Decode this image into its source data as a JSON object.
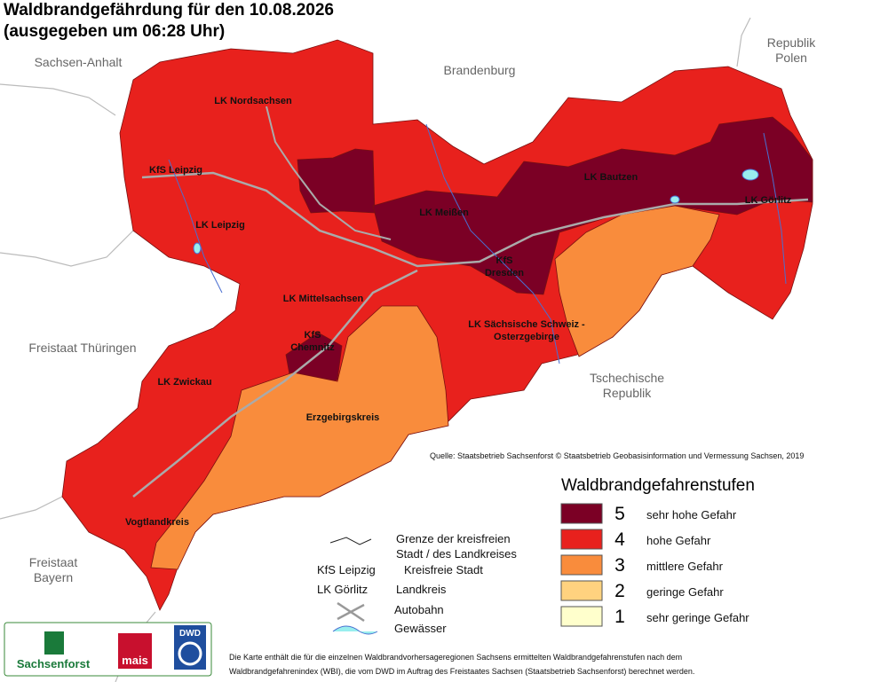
{
  "title": {
    "line1": "Waldbrandgefährdung  für den  10.08.2026",
    "line2": "(ausgegeben um 06:28 Uhr)"
  },
  "neighbors": [
    {
      "lines": [
        "Sachsen-Anhalt"
      ]
    },
    {
      "lines": [
        "Brandenburg"
      ]
    },
    {
      "lines": [
        "Republik",
        "Polen"
      ]
    },
    {
      "lines": [
        "Freistaat Thüringen"
      ]
    },
    {
      "lines": [
        "Tschechische",
        "Republik"
      ]
    },
    {
      "lines": [
        "Freistaat",
        "Bayern"
      ]
    }
  ],
  "regions": [
    {
      "lines": [
        "LK Nordsachsen"
      ]
    },
    {
      "lines": [
        "KfS Leipzig"
      ]
    },
    {
      "lines": [
        "LK Leipzig"
      ]
    },
    {
      "lines": [
        "LK Meißen"
      ]
    },
    {
      "lines": [
        "LK Bautzen"
      ]
    },
    {
      "lines": [
        "LK Görlitz"
      ]
    },
    {
      "lines": [
        "KfS",
        "Dresden"
      ]
    },
    {
      "lines": [
        "LK Mittelsachsen"
      ]
    },
    {
      "lines": [
        "LK Sächsische Schweiz -",
        "Osterzgebirge"
      ]
    },
    {
      "lines": [
        "KfS",
        "Chemnitz"
      ]
    },
    {
      "lines": [
        "LK Zwickau"
      ]
    },
    {
      "lines": [
        "Erzgebirgskreis"
      ]
    },
    {
      "lines": [
        "Vogtlandkreis"
      ]
    }
  ],
  "areas": [
    {
      "level": 4
    },
    {
      "level": 5
    },
    {
      "level": 5
    },
    {
      "level": 5
    },
    {
      "level": 3
    },
    {
      "level": 3
    }
  ],
  "source": "Quelle: Staatsbetrieb Sachsenforst  © Staatsbetrieb Geobasisinformation und Vermessung Sachsen, 2019",
  "legend": {
    "title": "Waldbrandgefahrenstufen",
    "items": [
      {
        "level": 5,
        "label": "sehr hohe Gefahr",
        "color": "#7b0025"
      },
      {
        "level": 4,
        "label": "hohe Gefahr",
        "color": "#e8211d"
      },
      {
        "level": 3,
        "label": "mittlere Gefahr",
        "color": "#f98c3c"
      },
      {
        "level": 2,
        "label": "geringe Gefahr",
        "color": "#ffd27f"
      },
      {
        "level": 1,
        "label": "sehr geringe Gefahr",
        "color": "#ffffcc"
      }
    ]
  },
  "key": {
    "border": [
      "Grenze der kreisfreien",
      " Stadt / des Landkreises"
    ],
    "kfs_example": "KfS Leipzig",
    "kfs_label": "Kreisfreie Stadt",
    "lk_example": "LK Görlitz",
    "lk_label": "Landkreis",
    "motorway": "Autobahn",
    "water": "Gewässer"
  },
  "footnote": [
    "Die Karte enthält die für die einzelnen Waldbrandvorhersageregionen Sachsens ermittelten Waldbrandgefahrenstufen nach dem",
    "Waldbrandgefahrenindex (WBI), die vom DWD im Auftrag des Freistaates Sachsen (Staatsbetrieb Sachsenforst) berechnet werden."
  ],
  "logos": {
    "sachsenforst": "Sachsenforst",
    "mais": "mais",
    "dwd": "DWD"
  }
}
